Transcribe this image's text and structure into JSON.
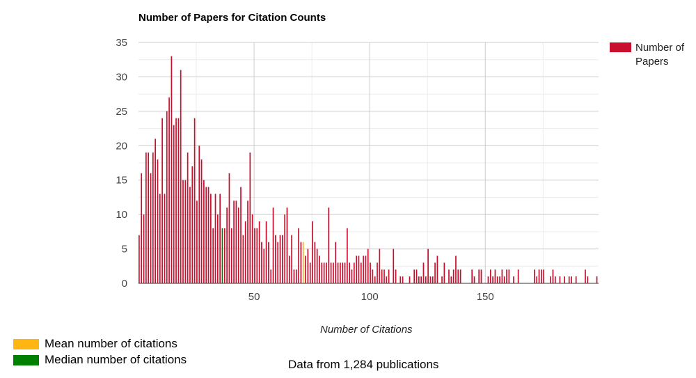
{
  "chart_data": {
    "type": "bar",
    "title": "Number of Papers for Citation Counts",
    "xlabel": "Number of Citations",
    "ylabel": "",
    "xlim": [
      0,
      199
    ],
    "ylim": [
      0,
      35
    ],
    "yticks": [
      0,
      5,
      10,
      15,
      20,
      25,
      30,
      35
    ],
    "xticks": [
      50,
      100,
      150
    ],
    "grid": true,
    "legend_placement": "right",
    "series": [
      {
        "name": "Number of Papers",
        "color": "#c8102e",
        "x": [
          0,
          1,
          2,
          3,
          4,
          5,
          6,
          7,
          8,
          9,
          10,
          11,
          12,
          13,
          14,
          15,
          16,
          17,
          18,
          19,
          20,
          21,
          22,
          23,
          24,
          25,
          26,
          27,
          28,
          29,
          30,
          31,
          32,
          33,
          34,
          35,
          36,
          37,
          38,
          39,
          40,
          41,
          42,
          43,
          44,
          45,
          46,
          47,
          48,
          49,
          50,
          51,
          52,
          53,
          54,
          55,
          56,
          57,
          58,
          59,
          60,
          61,
          62,
          63,
          64,
          65,
          66,
          67,
          68,
          69,
          70,
          71,
          72,
          73,
          74,
          75,
          76,
          77,
          78,
          79,
          80,
          81,
          82,
          83,
          84,
          85,
          86,
          87,
          88,
          89,
          90,
          91,
          92,
          93,
          94,
          95,
          96,
          97,
          98,
          99,
          100,
          101,
          102,
          103,
          104,
          105,
          106,
          107,
          108,
          110,
          111,
          113,
          114,
          117,
          119,
          120,
          121,
          122,
          123,
          124,
          125,
          126,
          127,
          128,
          129,
          131,
          132,
          134,
          135,
          136,
          137,
          138,
          139,
          144,
          145,
          147,
          148,
          151,
          152,
          153,
          154,
          155,
          156,
          157,
          158,
          159,
          160,
          162,
          164,
          171,
          172,
          173,
          174,
          175,
          178,
          179,
          180,
          182,
          184,
          186,
          187,
          189,
          193,
          194,
          198
        ],
        "values": [
          7,
          16,
          10,
          19,
          19,
          16,
          19,
          21,
          18,
          13,
          24,
          13,
          25,
          27,
          33,
          23,
          24,
          24,
          31,
          15,
          15,
          19,
          14,
          17,
          24,
          12,
          20,
          18,
          15,
          14,
          14,
          13,
          8,
          13,
          10,
          13,
          8,
          8,
          11,
          16,
          8,
          12,
          12,
          11,
          14,
          7,
          9,
          12,
          19,
          10,
          8,
          8,
          9,
          6,
          5,
          9,
          6,
          2,
          11,
          7,
          6,
          7,
          7,
          10,
          11,
          4,
          7,
          2,
          2,
          8,
          6,
          6,
          4,
          5,
          3,
          9,
          6,
          5,
          4,
          3,
          3,
          3,
          11,
          3,
          3,
          6,
          3,
          3,
          3,
          3,
          8,
          3,
          2,
          3,
          4,
          4,
          3,
          4,
          4,
          5,
          3,
          2,
          1,
          3,
          5,
          2,
          2,
          1,
          2,
          5,
          2,
          1,
          1,
          1,
          2,
          2,
          1,
          1,
          3,
          1,
          5,
          1,
          1,
          3,
          4,
          1,
          3,
          2,
          1,
          2,
          4,
          2,
          2,
          2,
          1,
          2,
          2,
          1,
          2,
          1,
          2,
          1,
          1,
          2,
          1,
          2,
          2,
          1,
          2,
          2,
          1,
          2,
          2,
          2,
          1,
          2,
          1,
          1,
          1,
          1,
          1,
          1,
          2,
          1,
          1
        ]
      }
    ],
    "highlights": [
      {
        "name": "Mean number of citations",
        "x": 71,
        "value": 4,
        "color": "#ffb612"
      },
      {
        "name": "Median number of citations",
        "x": 36,
        "value": 9,
        "color": "#008000"
      }
    ],
    "footer": "Data from 1,284 publications"
  }
}
